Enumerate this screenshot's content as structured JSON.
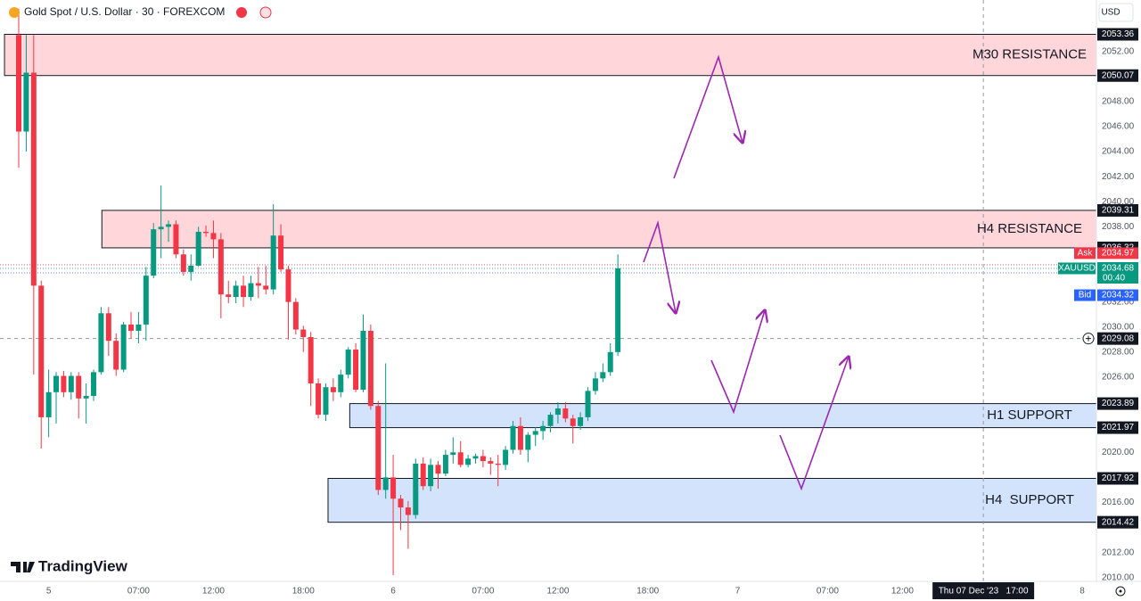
{
  "chart_data": {
    "type": "candlestick",
    "title": "Gold Spot / U.S. Dollar · 30 · FOREXCOM",
    "currency": "USD",
    "watermark": "TradingView",
    "up_color": "#089981",
    "down_color": "#f23645",
    "x": [
      0,
      1,
      2,
      3,
      4,
      5,
      6,
      7,
      8,
      9,
      10,
      11,
      12,
      13,
      14,
      15,
      16,
      17,
      18,
      19,
      20,
      21,
      22,
      23,
      24,
      25,
      26,
      27,
      28,
      29,
      30,
      31,
      32,
      33,
      34,
      35,
      36,
      37,
      38,
      39,
      40,
      41,
      42,
      43,
      44,
      45,
      46,
      47,
      48,
      49,
      50,
      51,
      52,
      53,
      54,
      55,
      56,
      57,
      58,
      59,
      60,
      61,
      62,
      63,
      64,
      65,
      66,
      67,
      68,
      69,
      70,
      71,
      72,
      73,
      74,
      75,
      76,
      77,
      78,
      79,
      80
    ],
    "open": [
      2053.3,
      2045.6,
      2050.3,
      2033.3,
      2022.8,
      2024.8,
      2026.1,
      2024.8,
      2026.1,
      2024.3,
      2024.5,
      2026.4,
      2031.1,
      2028.9,
      2026.6,
      2030.2,
      2029.7,
      2030.2,
      2034.1,
      2037.8,
      2038.0,
      2038.2,
      2035.8,
      2034.4,
      2034.9,
      2037.6,
      2037.5,
      2037.0,
      2032.6,
      2032.4,
      2033.3,
      2032.4,
      2033.5,
      2033.3,
      2033.0,
      2037.3,
      2034.6,
      2032.0,
      2029.8,
      2029.2,
      2025.5,
      2023.0,
      2025.2,
      2024.8,
      2026.2,
      2028.2,
      2025.0,
      2029.7,
      2023.7,
      2017.0,
      2018.0,
      2016.3,
      2015.6,
      2015.0,
      2019.1,
      2017.3,
      2019.0,
      2018.3,
      2019.8,
      2020.0,
      2019.0,
      2019.5,
      2019.7,
      2019.3,
      2019.1,
      2019.0,
      2020.2,
      2022.1,
      2020.2,
      2021.4,
      2021.7,
      2022.1,
      2023.0,
      2023.5,
      2022.7,
      2022.1,
      2022.8,
      2024.9,
      2025.9,
      2026.4,
      2028.0
    ],
    "high": [
      2055.4,
      2053.3,
      2053.3,
      2033.7,
      2026.6,
      2026.4,
      2026.5,
      2026.4,
      2026.4,
      2025.5,
      2026.6,
      2031.6,
      2031.6,
      2029.5,
      2030.4,
      2031.2,
      2031.2,
      2034.8,
      2038.3,
      2041.3,
      2038.5,
      2038.5,
      2036.2,
      2035.8,
      2038.0,
      2038.1,
      2038.5,
      2037.5,
      2033.7,
      2033.7,
      2034.1,
      2034.1,
      2034.8,
      2034.9,
      2039.8,
      2038.2,
      2034.9,
      2032.3,
      2030.1,
      2029.6,
      2025.9,
      2025.5,
      2025.9,
      2026.6,
      2028.4,
      2028.7,
      2031.0,
      2030.2,
      2024.1,
      2027.1,
      2019.8,
      2016.6,
      2016.1,
      2019.5,
      2019.6,
      2019.5,
      2019.3,
      2020.2,
      2021.2,
      2020.9,
      2019.8,
      2019.9,
      2020.2,
      2019.6,
      2019.8,
      2020.5,
      2022.5,
      2022.8,
      2021.6,
      2022.0,
      2022.5,
      2023.2,
      2024.0,
      2024.0,
      2023.0,
      2023.2,
      2025.2,
      2026.4,
      2027.1,
      2028.7,
      2035.8
    ],
    "low": [
      2042.7,
      2044.0,
      2026.2,
      2020.3,
      2021.2,
      2022.3,
      2024.4,
      2024.2,
      2022.7,
      2022.3,
      2024.1,
      2026.2,
      2027.7,
      2026.1,
      2026.4,
      2029.1,
      2028.7,
      2028.9,
      2033.9,
      2035.5,
      2036.8,
      2035.5,
      2034.1,
      2033.7,
      2034.8,
      2037.2,
      2035.5,
      2030.7,
      2031.9,
      2031.9,
      2031.6,
      2032.1,
      2032.3,
      2032.6,
      2032.6,
      2034.4,
      2029.0,
      2029.4,
      2028.0,
      2023.7,
      2022.7,
      2022.5,
      2024.1,
      2024.4,
      2025.9,
      2024.8,
      2024.8,
      2023.4,
      2016.6,
      2016.3,
      2010.2,
      2013.8,
      2012.3,
      2014.7,
      2017.0,
      2016.9,
      2017.1,
      2018.1,
      2019.1,
      2018.8,
      2018.8,
      2019.1,
      2018.8,
      2018.2,
      2017.3,
      2018.6,
      2019.9,
      2019.8,
      2019.2,
      2020.5,
      2021.0,
      2021.6,
      2022.3,
      2022.4,
      2020.7,
      2021.8,
      2022.5,
      2024.6,
      2025.6,
      2026.1,
      2027.7
    ],
    "close": [
      2045.6,
      2050.3,
      2033.3,
      2022.8,
      2024.8,
      2026.1,
      2024.8,
      2026.1,
      2024.3,
      2024.5,
      2026.4,
      2031.1,
      2028.9,
      2026.6,
      2030.2,
      2029.7,
      2030.2,
      2034.1,
      2037.8,
      2038.0,
      2038.2,
      2035.8,
      2034.4,
      2034.9,
      2037.6,
      2037.5,
      2037.0,
      2032.6,
      2032.4,
      2033.3,
      2032.4,
      2033.5,
      2033.3,
      2033.0,
      2037.3,
      2034.6,
      2032.0,
      2029.8,
      2029.2,
      2025.5,
      2023.0,
      2025.2,
      2024.8,
      2026.2,
      2028.2,
      2025.0,
      2029.7,
      2023.7,
      2017.0,
      2018.0,
      2016.3,
      2015.6,
      2015.0,
      2019.1,
      2017.3,
      2019.0,
      2018.3,
      2019.8,
      2020.0,
      2019.0,
      2019.5,
      2019.7,
      2019.3,
      2019.1,
      2019.0,
      2020.2,
      2022.1,
      2020.2,
      2021.4,
      2021.7,
      2022.1,
      2023.0,
      2023.5,
      2022.7,
      2022.1,
      2022.8,
      2024.9,
      2025.9,
      2026.4,
      2028.0,
      2034.68
    ],
    "xlim": [
      -2.5,
      143.9
    ],
    "xticks": [
      {
        "value": 4,
        "label": "5"
      },
      {
        "value": 16,
        "label": "07:00"
      },
      {
        "value": 26,
        "label": "12:00"
      },
      {
        "value": 38,
        "label": "18:00"
      },
      {
        "value": 50,
        "label": "6"
      },
      {
        "value": 62,
        "label": "07:00"
      },
      {
        "value": 72,
        "label": "12:00"
      },
      {
        "value": 84,
        "label": "18:00"
      },
      {
        "value": 96,
        "label": "7"
      },
      {
        "value": 108,
        "label": "07:00"
      },
      {
        "value": 118,
        "label": "12:00"
      },
      {
        "value": 142,
        "label": "8"
      }
    ],
    "ylim": [
      2009.7,
      2056.1
    ],
    "yticks": [
      {
        "value": 2010,
        "label": "2010.00"
      },
      {
        "value": 2012,
        "label": "2012.00"
      },
      {
        "value": 2016,
        "label": "2016.00"
      },
      {
        "value": 2020,
        "label": "2020.00"
      },
      {
        "value": 2026,
        "label": "2026.00"
      },
      {
        "value": 2028,
        "label": "2028.00"
      },
      {
        "value": 2030,
        "label": "2030.00"
      },
      {
        "value": 2032,
        "label": "2032.00"
      },
      {
        "value": 2038,
        "label": "2038.00"
      },
      {
        "value": 2040,
        "label": "2040.00"
      },
      {
        "value": 2042,
        "label": "2042.00"
      },
      {
        "value": 2044,
        "label": "2044.00"
      },
      {
        "value": 2046,
        "label": "2046.00"
      },
      {
        "value": 2048,
        "label": "2048.00"
      },
      {
        "value": 2052,
        "label": "2052.00"
      }
    ],
    "grid": false,
    "zones": [
      {
        "label": "M30 RESISTANCE",
        "top": 2053.36,
        "bottom": 2050.07,
        "x_start": -1.9,
        "color": "#ffd6da"
      },
      {
        "label": "H4 RESISTANCE",
        "top": 2039.31,
        "bottom": 2036.32,
        "x_start": 11.1,
        "color": "#ffd6da"
      },
      {
        "label": "H1 SUPPORT",
        "top": 2023.89,
        "bottom": 2021.97,
        "x_start": 44.2,
        "color": "#d3e3fb"
      },
      {
        "label": "H4  SUPPORT",
        "top": 2017.92,
        "bottom": 2014.42,
        "x_start": 41.3,
        "color": "#d3e3fb"
      }
    ],
    "price_markers": [
      {
        "label": "Ask",
        "value": 2034.97,
        "color": "#f23645"
      },
      {
        "label": "XAUUSD",
        "value": 2034.68,
        "countdown": "00:40",
        "color": "#089981"
      },
      {
        "label": "Bid",
        "value": 2034.32,
        "color": "#2962ff"
      }
    ],
    "crosshair": {
      "price": 2029.08,
      "time": 128.8,
      "time_label": "Thu 07 Dec '23   17:00"
    }
  }
}
